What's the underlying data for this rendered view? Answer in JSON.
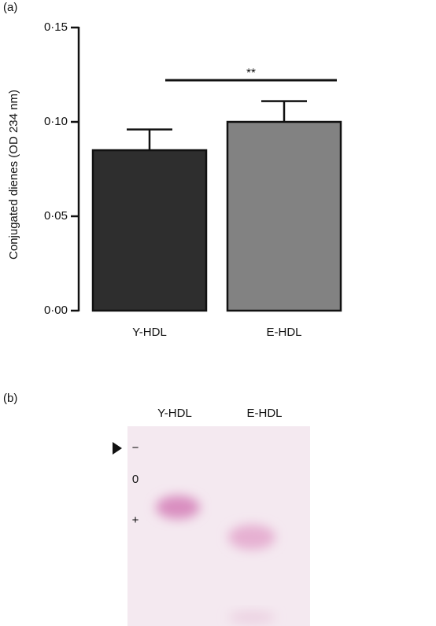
{
  "chart_data": {
    "type": "bar",
    "panel_label": "(a)",
    "ylabel": "Conjugated dienes (OD 234 nm)",
    "categories": [
      "Y-HDL",
      "E-HDL"
    ],
    "values": [
      0.085,
      0.1
    ],
    "errors": [
      0.011,
      0.011
    ],
    "colors": [
      "#2e2e2e",
      "#828282"
    ],
    "ylim": [
      0,
      0.15
    ],
    "yticks": [
      {
        "value": 0,
        "label": "0·00"
      },
      {
        "value": 0.05,
        "label": "0·05"
      },
      {
        "value": 0.1,
        "label": "0·10"
      },
      {
        "value": 0.15,
        "label": "0·15"
      }
    ],
    "significance": "**"
  },
  "panel_b": {
    "label": "(b)",
    "lanes": [
      "Y-HDL",
      "E-HDL"
    ],
    "markers": [
      "−",
      "0",
      "+"
    ]
  }
}
